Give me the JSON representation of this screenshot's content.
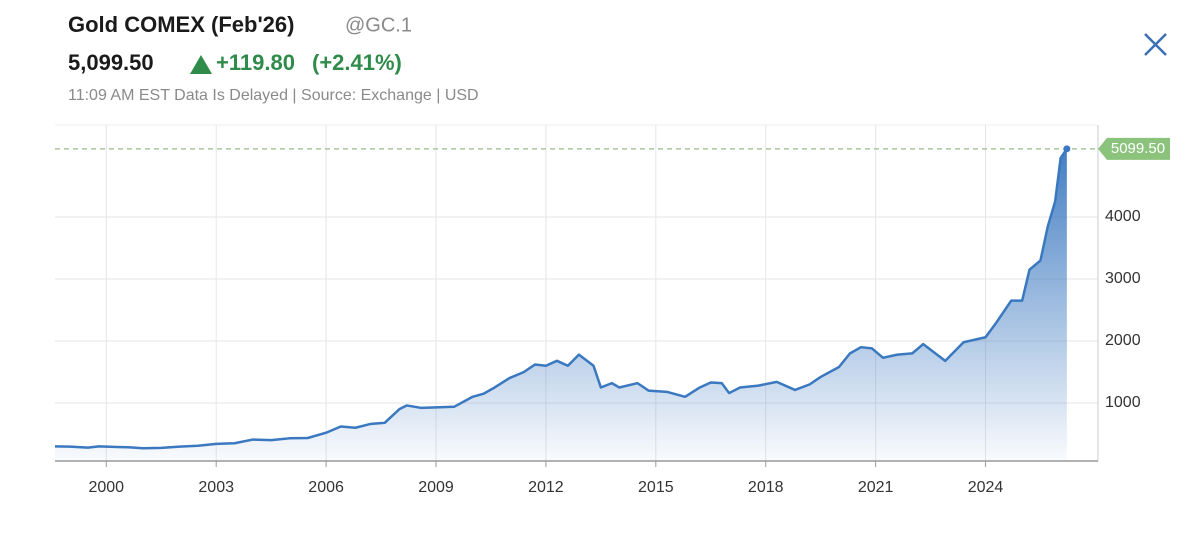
{
  "header": {
    "title": "Gold COMEX (Feb'26)",
    "symbol": "@GC.1",
    "price": "5,099.50",
    "change": "+119.80",
    "change_percent": "(+2.41%)",
    "note": "11:09 AM EST Data Is Delayed | Source: Exchange | USD"
  },
  "chart_data": {
    "type": "area",
    "series": [
      {
        "name": "Gold COMEX",
        "color": "#3a78c0",
        "x": [
          1998.6,
          1999.0,
          1999.5,
          1999.8,
          2000.3,
          2000.6,
          2001.0,
          2001.5,
          2002.0,
          2002.5,
          2003.0,
          2003.5,
          2004.0,
          2004.5,
          2005.0,
          2005.5,
          2006.0,
          2006.4,
          2006.8,
          2007.2,
          2007.6,
          2008.0,
          2008.2,
          2008.6,
          2009.0,
          2009.5,
          2010.0,
          2010.3,
          2010.6,
          2011.0,
          2011.4,
          2011.7,
          2012.0,
          2012.3,
          2012.6,
          2012.9,
          2013.3,
          2013.5,
          2013.8,
          2014.0,
          2014.5,
          2014.8,
          2015.3,
          2015.8,
          2016.2,
          2016.5,
          2016.8,
          2017.0,
          2017.3,
          2017.8,
          2018.3,
          2018.8,
          2019.2,
          2019.5,
          2020.0,
          2020.3,
          2020.6,
          2020.9,
          2021.2,
          2021.6,
          2022.0,
          2022.3,
          2022.9,
          2023.4,
          2024.0,
          2024.3,
          2024.7,
          2025.0,
          2025.2,
          2025.5,
          2025.7,
          2025.9,
          2026.05,
          2026.22
        ],
        "values": [
          300,
          295,
          280,
          300,
          290,
          285,
          270,
          275,
          295,
          310,
          340,
          350,
          410,
          400,
          430,
          435,
          520,
          620,
          600,
          660,
          680,
          900,
          960,
          920,
          930,
          940,
          1100,
          1150,
          1250,
          1400,
          1500,
          1620,
          1600,
          1680,
          1600,
          1780,
          1600,
          1250,
          1320,
          1250,
          1320,
          1200,
          1180,
          1100,
          1250,
          1330,
          1320,
          1160,
          1250,
          1280,
          1340,
          1210,
          1300,
          1420,
          1580,
          1800,
          1900,
          1880,
          1730,
          1780,
          1800,
          1950,
          1680,
          1980,
          2060,
          2300,
          2650,
          2650,
          3150,
          3300,
          3850,
          4250,
          4950,
          5099.5
        ]
      }
    ],
    "last_value_label": "5099.50",
    "xlim": [
      1998.6,
      2027.07
    ],
    "xticks": [
      2000,
      2003,
      2006,
      2009,
      2012,
      2015,
      2018,
      2021,
      2024
    ],
    "ylim": [
      64,
      5484
    ],
    "yticks": [
      1000,
      2000,
      3000,
      4000
    ],
    "grid": true
  }
}
